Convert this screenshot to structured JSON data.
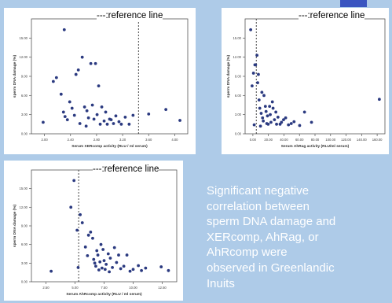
{
  "slide": {
    "title": "",
    "reference_note": "---:reference line",
    "description_lines": [
      {
        "text": "Significant negative",
        "color": "#ffffff"
      },
      {
        "text": "correlation between",
        "color": "#ffffff"
      },
      {
        "text": "sperm DNA damage and",
        "color": "#ffffff"
      },
      {
        "text": "XERcomp, AhRag, or",
        "color": "#ffffff"
      },
      {
        "text": "AhRcomp were",
        "color": "#ffffff"
      },
      {
        "text": "observed in Greenlandic",
        "color": "#ffffff"
      },
      {
        "text": "Inuits",
        "color": "#ffffff"
      }
    ],
    "colors": {
      "background": "#aecbe8",
      "points": "#2b3a80",
      "chip": "#3a55c0"
    }
  },
  "chart_data": [
    {
      "type": "scatter",
      "xlabel": "Serum XERcomp activity (RLU / ml serum)",
      "ylabel": "sperm DNA damage (%)",
      "reference_line": {
        "style": "dashed",
        "x": 3.37
      },
      "xlim": [
        2.0,
        4.0
      ],
      "ylim": [
        0,
        18
      ],
      "xticks": [
        "2.00",
        "2.40",
        "2.80",
        "3.20",
        "3.60",
        "4.00"
      ],
      "yticks": [
        "0.00",
        "3.00",
        "6.00",
        "9.00",
        "12.00",
        "15.00"
      ],
      "grid": false,
      "points": [
        [
          2.15,
          1.8
        ],
        [
          2.28,
          8.2
        ],
        [
          2.32,
          8.8
        ],
        [
          2.38,
          6.2
        ],
        [
          2.41,
          3.4
        ],
        [
          2.43,
          2.7
        ],
        [
          2.46,
          2.2
        ],
        [
          2.49,
          5.0
        ],
        [
          2.52,
          4.0
        ],
        [
          2.55,
          2.9
        ],
        [
          2.57,
          9.3
        ],
        [
          2.6,
          10.0
        ],
        [
          2.62,
          1.6
        ],
        [
          2.65,
          12.0
        ],
        [
          2.68,
          4.2
        ],
        [
          2.71,
          3.6
        ],
        [
          2.73,
          2.5
        ],
        [
          2.76,
          11.0
        ],
        [
          2.78,
          4.5
        ],
        [
          2.8,
          2.3
        ],
        [
          2.82,
          11.0
        ],
        [
          2.84,
          3.0
        ],
        [
          2.86,
          7.5
        ],
        [
          2.88,
          1.5
        ],
        [
          2.9,
          4.2
        ],
        [
          2.93,
          2.0
        ],
        [
          2.95,
          3.4
        ],
        [
          2.97,
          1.5
        ],
        [
          3.0,
          2.3
        ],
        [
          3.02,
          2.2
        ],
        [
          3.05,
          1.6
        ],
        [
          3.08,
          2.8
        ],
        [
          3.12,
          1.9
        ],
        [
          3.15,
          1.5
        ],
        [
          3.2,
          2.6
        ],
        [
          3.25,
          1.5
        ],
        [
          3.3,
          2.9
        ],
        [
          3.5,
          3.1
        ],
        [
          3.72,
          3.8
        ],
        [
          3.9,
          2.1
        ],
        [
          2.42,
          16.3
        ],
        [
          2.7,
          1.2
        ]
      ]
    },
    {
      "type": "scatter",
      "xlabel": "Serum AhRag activity (RLU/ml serum)",
      "ylabel": "sperm DNA damage (%)",
      "reference_line": {
        "style": "dashed",
        "x": 16
      },
      "xlim": [
        0,
        200
      ],
      "ylim": [
        0,
        18
      ],
      "xticks": [
        "0.00",
        "20.00",
        "40.00",
        "60.00",
        "80.00",
        "100.00",
        "120.00",
        "140.00",
        "160.00"
      ],
      "yticks": [
        "0.00",
        "3.00",
        "6.00",
        "9.00",
        "12.00",
        "15.00"
      ],
      "grid": false,
      "points": [
        [
          8,
          16.3
        ],
        [
          10,
          7.5
        ],
        [
          12,
          9.5
        ],
        [
          14,
          10.8
        ],
        [
          15,
          10.8
        ],
        [
          17,
          12.3
        ],
        [
          18,
          8.0
        ],
        [
          19,
          9.3
        ],
        [
          20,
          5.3
        ],
        [
          21,
          4.0
        ],
        [
          23,
          3.2
        ],
        [
          24,
          6.5
        ],
        [
          25,
          2.5
        ],
        [
          26,
          2.0
        ],
        [
          27,
          6.0
        ],
        [
          29,
          4.3
        ],
        [
          30,
          3.5
        ],
        [
          31,
          1.6
        ],
        [
          32,
          2.8
        ],
        [
          33,
          1.5
        ],
        [
          35,
          4.3
        ],
        [
          36,
          3.0
        ],
        [
          37,
          1.8
        ],
        [
          39,
          5.0
        ],
        [
          40,
          4.0
        ],
        [
          42,
          2.2
        ],
        [
          44,
          3.4
        ],
        [
          45,
          1.5
        ],
        [
          47,
          2.6
        ],
        [
          50,
          1.5
        ],
        [
          52,
          1.8
        ],
        [
          55,
          2.2
        ],
        [
          58,
          2.5
        ],
        [
          62,
          1.4
        ],
        [
          66,
          1.6
        ],
        [
          70,
          1.9
        ],
        [
          78,
          1.3
        ],
        [
          85,
          3.4
        ],
        [
          95,
          1.8
        ],
        [
          192,
          5.4
        ],
        [
          13,
          1.4
        ],
        [
          22,
          1.2
        ]
      ]
    },
    {
      "type": "scatter",
      "xlabel": "Serum AhRcomp activity (RLU / ml serum)",
      "ylabel": "sperm DNA damage (%)",
      "reference_line": {
        "style": "dashed",
        "x": 4.55
      },
      "xlim": [
        0,
        14
      ],
      "ylim": [
        0,
        18
      ],
      "xticks": [
        "2.50",
        "5.00",
        "7.50",
        "10.00",
        "12.50"
      ],
      "yticks": [
        "0.00",
        "3.00",
        "6.00",
        "9.00",
        "12.00",
        "15.00"
      ],
      "grid": false,
      "points": [
        [
          1.9,
          1.7
        ],
        [
          3.8,
          12.0
        ],
        [
          4.1,
          16.3
        ],
        [
          4.4,
          8.3
        ],
        [
          4.5,
          2.3
        ],
        [
          4.7,
          10.8
        ],
        [
          4.9,
          9.5
        ],
        [
          5.2,
          5.6
        ],
        [
          5.4,
          4.2
        ],
        [
          5.5,
          7.5
        ],
        [
          5.7,
          8.0
        ],
        [
          5.9,
          7.0
        ],
        [
          6.0,
          3.6
        ],
        [
          6.1,
          3.0
        ],
        [
          6.2,
          2.5
        ],
        [
          6.3,
          5.0
        ],
        [
          6.4,
          4.3
        ],
        [
          6.5,
          1.9
        ],
        [
          6.6,
          3.2
        ],
        [
          6.7,
          6.0
        ],
        [
          6.8,
          2.2
        ],
        [
          6.9,
          5.2
        ],
        [
          7.0,
          3.4
        ],
        [
          7.1,
          2.0
        ],
        [
          7.2,
          2.8
        ],
        [
          7.4,
          4.5
        ],
        [
          7.5,
          1.6
        ],
        [
          7.6,
          3.8
        ],
        [
          7.8,
          2.3
        ],
        [
          8.0,
          5.5
        ],
        [
          8.2,
          3.1
        ],
        [
          8.4,
          4.3
        ],
        [
          8.6,
          2.1
        ],
        [
          8.9,
          2.5
        ],
        [
          9.2,
          4.3
        ],
        [
          9.5,
          1.7
        ],
        [
          9.8,
          2.0
        ],
        [
          10.3,
          2.6
        ],
        [
          10.6,
          1.8
        ],
        [
          11.0,
          2.2
        ],
        [
          12.5,
          2.4
        ],
        [
          13.2,
          1.8
        ]
      ]
    }
  ]
}
